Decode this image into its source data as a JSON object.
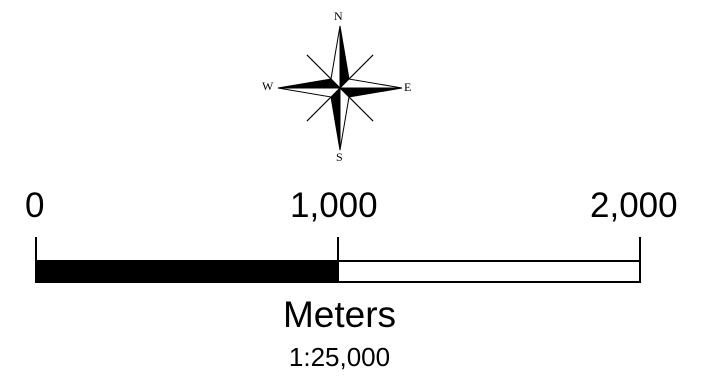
{
  "north_arrow": {
    "north": "N",
    "south": "S",
    "east": "E",
    "west": "W"
  },
  "scale_bar": {
    "ticks": [
      {
        "value": 0,
        "label": "0"
      },
      {
        "value": 1000,
        "label": "1,000"
      },
      {
        "value": 2000,
        "label": "2,000"
      }
    ],
    "segments": [
      {
        "from": 0,
        "to": 1000,
        "fill": "#000000"
      },
      {
        "from": 1000,
        "to": 2000,
        "fill": "#ffffff"
      }
    ],
    "units": "Meters",
    "ratio": "1:25,000"
  }
}
